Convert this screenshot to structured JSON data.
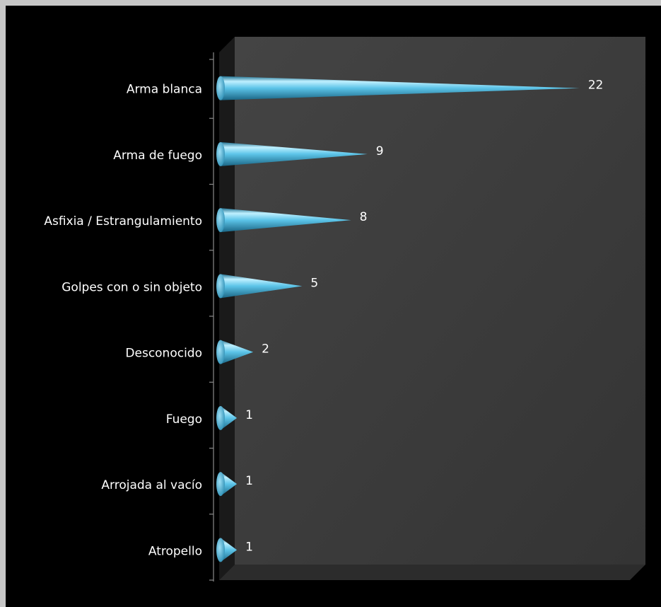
{
  "chart_data": {
    "type": "bar",
    "orientation": "horizontal",
    "bar_shape": "cone",
    "title": "",
    "xlabel": "",
    "ylabel": "",
    "categories": [
      "Arma blanca",
      "Arma de fuego",
      "Asfixia / Estrangulamiento",
      "Golpes con o sin objeto",
      "Desconocido",
      "Fuego",
      "Arrojada al vacío",
      "Atropello"
    ],
    "values": [
      22,
      9,
      8,
      5,
      2,
      1,
      1,
      1
    ],
    "value_labels": [
      "22",
      "9",
      "8",
      "5",
      "2",
      "1",
      "1",
      "1"
    ],
    "xlim": [
      0,
      26
    ],
    "grid": false,
    "legend": "none",
    "colors": {
      "background": "#000000",
      "outer_border": "#c7c7c7",
      "plot_wall": "#3a3a3a",
      "bar": "#3aa6cf",
      "bar_highlight": "#bff0ff",
      "text": "#ffffff"
    }
  }
}
